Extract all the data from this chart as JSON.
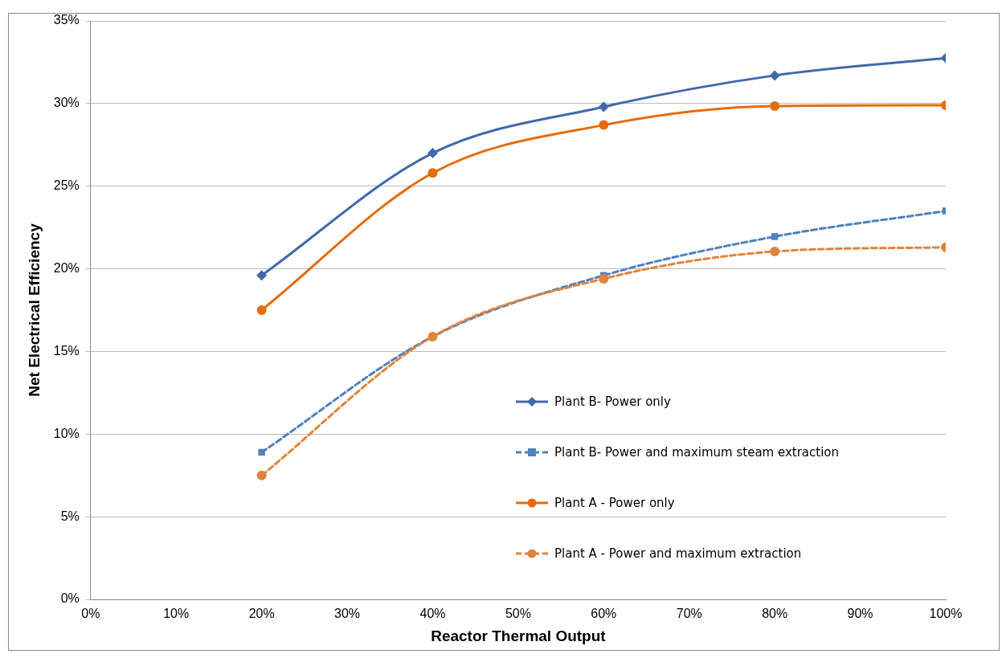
{
  "chart_data": {
    "type": "line",
    "xlabel": "Reactor Thermal Output",
    "ylabel": "Net Electrical Efficiency",
    "x": [
      20,
      40,
      60,
      80,
      100
    ],
    "series": [
      {
        "name": "Plant B- Power only",
        "color": "#4169aa",
        "marker": "diamond",
        "line_style": "solid",
        "values": [
          19.6,
          27.0,
          29.8,
          31.7,
          32.75
        ]
      },
      {
        "name": "Plant B- Power and maximum steam extraction",
        "color": "#4f81bd",
        "marker": "square",
        "line_style": "dashed",
        "values": [
          8.9,
          15.9,
          19.6,
          21.95,
          23.5
        ]
      },
      {
        "name": "Plant A - Power only",
        "color": "#e46c0a",
        "marker": "circle",
        "line_style": "solid",
        "values": [
          17.5,
          25.8,
          28.7,
          29.85,
          29.9
        ]
      },
      {
        "name": "Plant A - Power and maximum extraction",
        "color": "#e0843c",
        "marker": "circle",
        "line_style": "dashed",
        "values": [
          7.5,
          15.9,
          19.4,
          21.05,
          21.3
        ]
      }
    ],
    "xlim": [
      0,
      100
    ],
    "xticks": [
      {
        "value": 0,
        "label": "0%"
      },
      {
        "value": 10,
        "label": "10%"
      },
      {
        "value": 20,
        "label": "20%"
      },
      {
        "value": 30,
        "label": "30%"
      },
      {
        "value": 40,
        "label": "40%"
      },
      {
        "value": 50,
        "label": "50%"
      },
      {
        "value": 60,
        "label": "60%"
      },
      {
        "value": 70,
        "label": "70%"
      },
      {
        "value": 80,
        "label": "80%"
      },
      {
        "value": 90,
        "label": "90%"
      },
      {
        "value": 100,
        "label": "100%"
      }
    ],
    "ylim": [
      0,
      35
    ],
    "yticks": [
      {
        "value": 0,
        "label": "0%"
      },
      {
        "value": 5,
        "label": "5%"
      },
      {
        "value": 10,
        "label": "10%"
      },
      {
        "value": 15,
        "label": "15%"
      },
      {
        "value": 20,
        "label": "20%"
      },
      {
        "value": 25,
        "label": "25%"
      },
      {
        "value": 30,
        "label": "30%"
      },
      {
        "value": 35,
        "label": "35%"
      }
    ],
    "grid": "y",
    "legend": "bottom right"
  }
}
